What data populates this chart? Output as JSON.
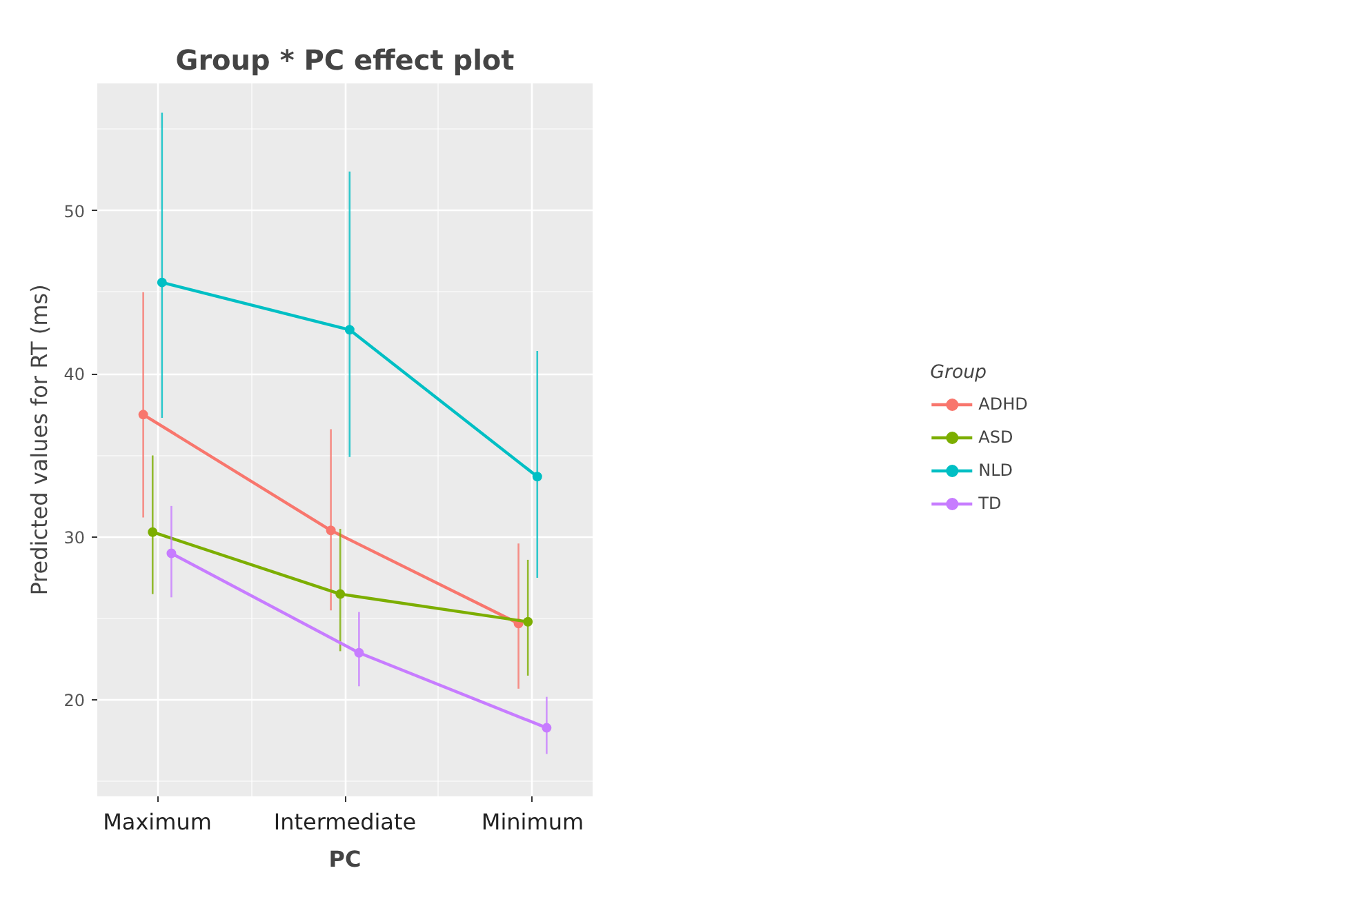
{
  "chart_data": {
    "type": "line",
    "title": "Group * PC effect plot",
    "xlabel": "PC",
    "ylabel": "Predicted values for RT (ms)",
    "legend_title": "Group",
    "categories": [
      "Maximum",
      "Intermediate",
      "Minimum"
    ],
    "series": [
      {
        "name": "ADHD",
        "color": "#f8766d",
        "values": [
          37.5,
          30.4,
          24.7
        ],
        "errors": [
          [
            31.2,
            45.0
          ],
          [
            25.5,
            36.6
          ],
          [
            20.7,
            29.6
          ]
        ]
      },
      {
        "name": "ASD",
        "color": "#7cae00",
        "values": [
          30.3,
          26.5,
          24.8
        ],
        "errors": [
          [
            26.5,
            35.0
          ],
          [
            23.0,
            30.5
          ],
          [
            21.5,
            28.6
          ]
        ]
      },
      {
        "name": "NLD",
        "color": "#00bfc4",
        "values": [
          45.6,
          42.7,
          33.7
        ],
        "errors": [
          [
            37.3,
            56.0
          ],
          [
            34.9,
            52.4
          ],
          [
            27.5,
            41.4
          ]
        ]
      },
      {
        "name": "TD",
        "color": "#c77cff",
        "values": [
          29.0,
          22.9,
          18.3
        ],
        "errors": [
          [
            26.3,
            31.9
          ],
          [
            20.85,
            25.4
          ],
          [
            16.7,
            20.2
          ]
        ]
      }
    ],
    "ylim": [
      14.1,
      57.8
    ],
    "yticks": [
      20,
      30,
      40,
      50
    ],
    "grid": true,
    "legend": "right",
    "marker": "circle",
    "line_style": "solid"
  }
}
